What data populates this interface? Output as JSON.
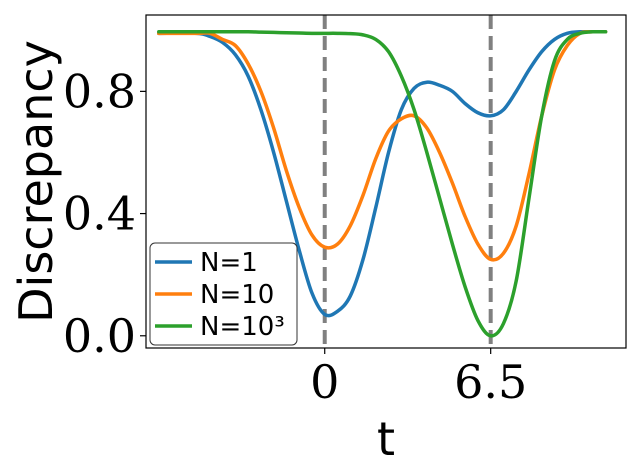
{
  "chart_data": {
    "type": "line",
    "xlabel": "t",
    "ylabel": "Discrepancy",
    "xlim": [
      -7,
      11.8
    ],
    "ylim": [
      -0.04,
      1.05
    ],
    "xticks": [
      {
        "value": 0,
        "label": "0"
      },
      {
        "value": 6.5,
        "label": "6.5"
      }
    ],
    "yticks": [
      {
        "value": 0.0,
        "label": "0.0"
      },
      {
        "value": 0.4,
        "label": "0.4"
      },
      {
        "value": 0.8,
        "label": "0.8"
      }
    ],
    "vlines": [
      0,
      6.5
    ],
    "vline_color": "#808080",
    "legend_position": "lower-left",
    "series": [
      {
        "name": "N=1",
        "color": "#1f77b4",
        "x": [
          -6.5,
          -5,
          -4.5,
          -4,
          -3.5,
          -3,
          -2.5,
          -2,
          -1.5,
          -1,
          -0.5,
          0,
          0.5,
          1,
          1.5,
          2,
          2.5,
          3,
          3.5,
          4,
          4.5,
          5,
          5.5,
          6,
          6.5,
          7,
          7.5,
          8,
          8.5,
          9,
          9.5,
          10,
          10.5,
          11
        ],
        "values": [
          0.99,
          0.99,
          0.98,
          0.96,
          0.92,
          0.85,
          0.74,
          0.6,
          0.44,
          0.28,
          0.14,
          0.07,
          0.08,
          0.13,
          0.25,
          0.42,
          0.6,
          0.74,
          0.81,
          0.83,
          0.82,
          0.8,
          0.76,
          0.73,
          0.72,
          0.74,
          0.8,
          0.87,
          0.93,
          0.97,
          0.99,
          0.995,
          0.995,
          0.995
        ]
      },
      {
        "name": "N=10",
        "color": "#ff7f0e",
        "x": [
          -6.5,
          -5,
          -4.5,
          -4,
          -3.5,
          -3,
          -2.5,
          -2,
          -1.5,
          -1,
          -0.5,
          0,
          0.5,
          1,
          1.5,
          2,
          2.5,
          3,
          3.5,
          4,
          4.5,
          5,
          5.5,
          6,
          6.5,
          7,
          7.5,
          8,
          8.5,
          9,
          9.5,
          10,
          10.5,
          11
        ],
        "values": [
          0.99,
          0.99,
          0.99,
          0.97,
          0.95,
          0.89,
          0.8,
          0.68,
          0.54,
          0.42,
          0.33,
          0.29,
          0.3,
          0.36,
          0.46,
          0.58,
          0.67,
          0.71,
          0.72,
          0.68,
          0.6,
          0.5,
          0.39,
          0.3,
          0.25,
          0.27,
          0.36,
          0.53,
          0.72,
          0.87,
          0.95,
          0.99,
          0.995,
          0.995
        ]
      },
      {
        "name": "N=10³",
        "color": "#2ca02c",
        "x": [
          -6.5,
          -5,
          -4.5,
          -4,
          -3.5,
          -3,
          -2.5,
          -2,
          -1.5,
          -1,
          -0.5,
          0,
          0.5,
          1,
          1.5,
          2,
          2.5,
          3,
          3.5,
          4,
          4.5,
          5,
          5.5,
          6,
          6.5,
          7,
          7.5,
          8,
          8.5,
          9,
          9.5,
          10,
          10.5,
          11
        ],
        "values": [
          0.995,
          0.995,
          0.995,
          0.995,
          0.995,
          0.995,
          0.994,
          0.993,
          0.992,
          0.991,
          0.99,
          0.99,
          0.99,
          0.989,
          0.985,
          0.97,
          0.93,
          0.85,
          0.74,
          0.6,
          0.45,
          0.3,
          0.16,
          0.05,
          0.0,
          0.04,
          0.18,
          0.45,
          0.72,
          0.9,
          0.97,
          0.99,
          0.995,
          0.995
        ]
      }
    ]
  }
}
